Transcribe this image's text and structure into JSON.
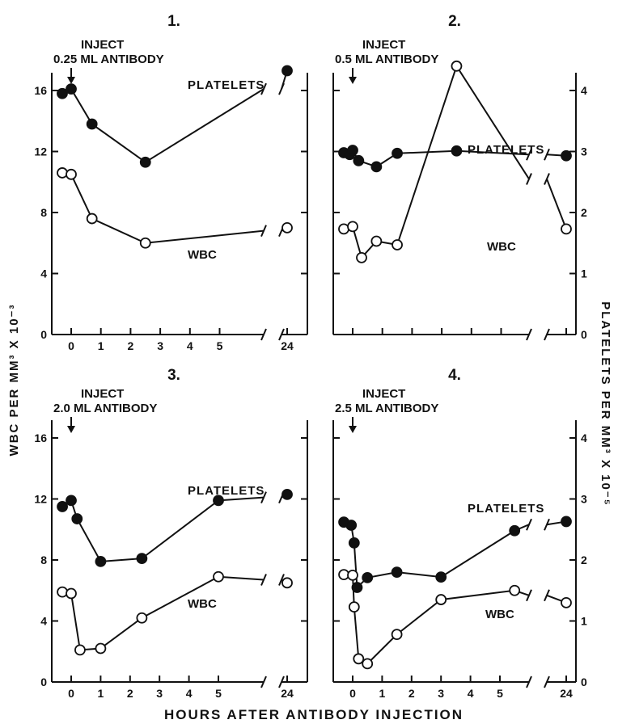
{
  "figure": {
    "left_axis_label": "WBC PER MM³ X 10⁻³",
    "right_axis_label": "PLATELETS PER MM³ X 10⁻⁵",
    "bottom_axis_label": "HOURS AFTER ANTIBODY INJECTION",
    "inject_label": "INJECT",
    "platelets_label": "PLATELETS",
    "wbc_label": "WBC"
  },
  "chart_data": [
    {
      "type": "line",
      "panel_label": "1.",
      "annotation": "0.25 ML ANTIBODY",
      "inject_time": 0,
      "xlabel": "",
      "ylabel": "",
      "x_ticks": [
        "0",
        "1",
        "2",
        "3",
        "4",
        "5",
        "24"
      ],
      "ylim_left": [
        0,
        16
      ],
      "y_ticks_left": [
        "0",
        "4",
        "8",
        "12",
        "16"
      ],
      "ylim_right": null,
      "y_ticks_right": [],
      "series": [
        {
          "name": "PLATELETS",
          "marker": "filled",
          "x": [
            -0.3,
            0,
            0.7,
            2.5,
            24
          ],
          "y": [
            15.8,
            16.1,
            13.8,
            11.3,
            17.3
          ],
          "break_after": 2.5,
          "break_end": 16.1
        },
        {
          "name": "WBC",
          "marker": "open",
          "x": [
            -0.3,
            0,
            0.7,
            2.5,
            24
          ],
          "y": [
            10.6,
            10.5,
            7.6,
            6.0,
            7.0
          ],
          "break_after": 2.5,
          "break_end": 6.8
        }
      ]
    },
    {
      "type": "line",
      "panel_label": "2.",
      "annotation": "0.5 ML ANTIBODY",
      "inject_time": 0,
      "xlabel": "",
      "ylabel": "",
      "x_ticks": [],
      "ylim_left": null,
      "y_ticks_left": [],
      "ylim_right": [
        0,
        4
      ],
      "y_ticks_right": [
        "0",
        "1",
        "2",
        "3",
        "4"
      ],
      "series": [
        {
          "name": "PLATELETS",
          "marker": "filled",
          "x": [
            -0.3,
            -0.1,
            0,
            0.2,
            0.8,
            1.5,
            3.5,
            24
          ],
          "y": [
            2.98,
            2.95,
            3.02,
            2.85,
            2.75,
            2.97,
            3.01,
            2.93
          ],
          "break_after": 3.5,
          "break_end": 2.95
        },
        {
          "name": "WBC",
          "marker": "open",
          "x": [
            -0.3,
            0,
            0.3,
            0.8,
            1.5,
            3.5,
            24
          ],
          "y": [
            1.73,
            1.77,
            1.26,
            1.53,
            1.47,
            4.4,
            1.73
          ],
          "break_after": 3.5,
          "break_end": 2.55
        }
      ]
    },
    {
      "type": "line",
      "panel_label": "3.",
      "annotation": "2.0 ML ANTIBODY",
      "inject_time": 0,
      "xlabel": "",
      "ylabel": "",
      "x_ticks": [
        "0",
        "1",
        "2",
        "3",
        "4",
        "5",
        "24"
      ],
      "ylim_left": [
        0,
        16
      ],
      "y_ticks_left": [
        "0",
        "4",
        "8",
        "12",
        "16"
      ],
      "ylim_right": null,
      "y_ticks_right": [],
      "series": [
        {
          "name": "PLATELETS",
          "marker": "filled",
          "x": [
            -0.3,
            0,
            0.2,
            1,
            2.4,
            5,
            24
          ],
          "y": [
            11.5,
            11.9,
            10.7,
            7.9,
            8.1,
            11.9,
            12.3
          ],
          "break_after": 5,
          "break_end": 12.1
        },
        {
          "name": "WBC",
          "marker": "open",
          "x": [
            -0.3,
            0,
            0.3,
            1,
            2.4,
            5,
            24
          ],
          "y": [
            5.9,
            5.8,
            2.1,
            2.2,
            4.2,
            6.9,
            6.5
          ],
          "break_after": 5,
          "break_end": 6.7
        }
      ]
    },
    {
      "type": "line",
      "panel_label": "4.",
      "annotation": "2.5 ML ANTIBODY",
      "inject_time": 0,
      "xlabel": "",
      "ylabel": "",
      "x_ticks": [
        "0",
        "1",
        "2",
        "3",
        "4",
        "5",
        "24"
      ],
      "ylim_left": null,
      "y_ticks_left": [],
      "ylim_right": [
        0,
        4
      ],
      "y_ticks_right": [
        "0",
        "1",
        "2",
        "3",
        "4"
      ],
      "series": [
        {
          "name": "PLATELETS",
          "marker": "filled",
          "x": [
            -0.3,
            -0.05,
            0.05,
            0.15,
            0.5,
            1.5,
            3,
            5.5,
            24
          ],
          "y": [
            2.62,
            2.57,
            2.28,
            1.55,
            1.71,
            1.8,
            1.72,
            2.48,
            2.63
          ],
          "break_after": 5.5,
          "break_end": 2.58
        },
        {
          "name": "WBC",
          "marker": "open",
          "x": [
            -0.3,
            0,
            0.05,
            0.2,
            0.5,
            1.5,
            3,
            5.5,
            24
          ],
          "y": [
            1.76,
            1.75,
            1.23,
            0.38,
            0.3,
            0.78,
            1.35,
            1.5,
            1.3
          ],
          "break_after": 5.5,
          "break_end": 1.42
        }
      ]
    }
  ]
}
